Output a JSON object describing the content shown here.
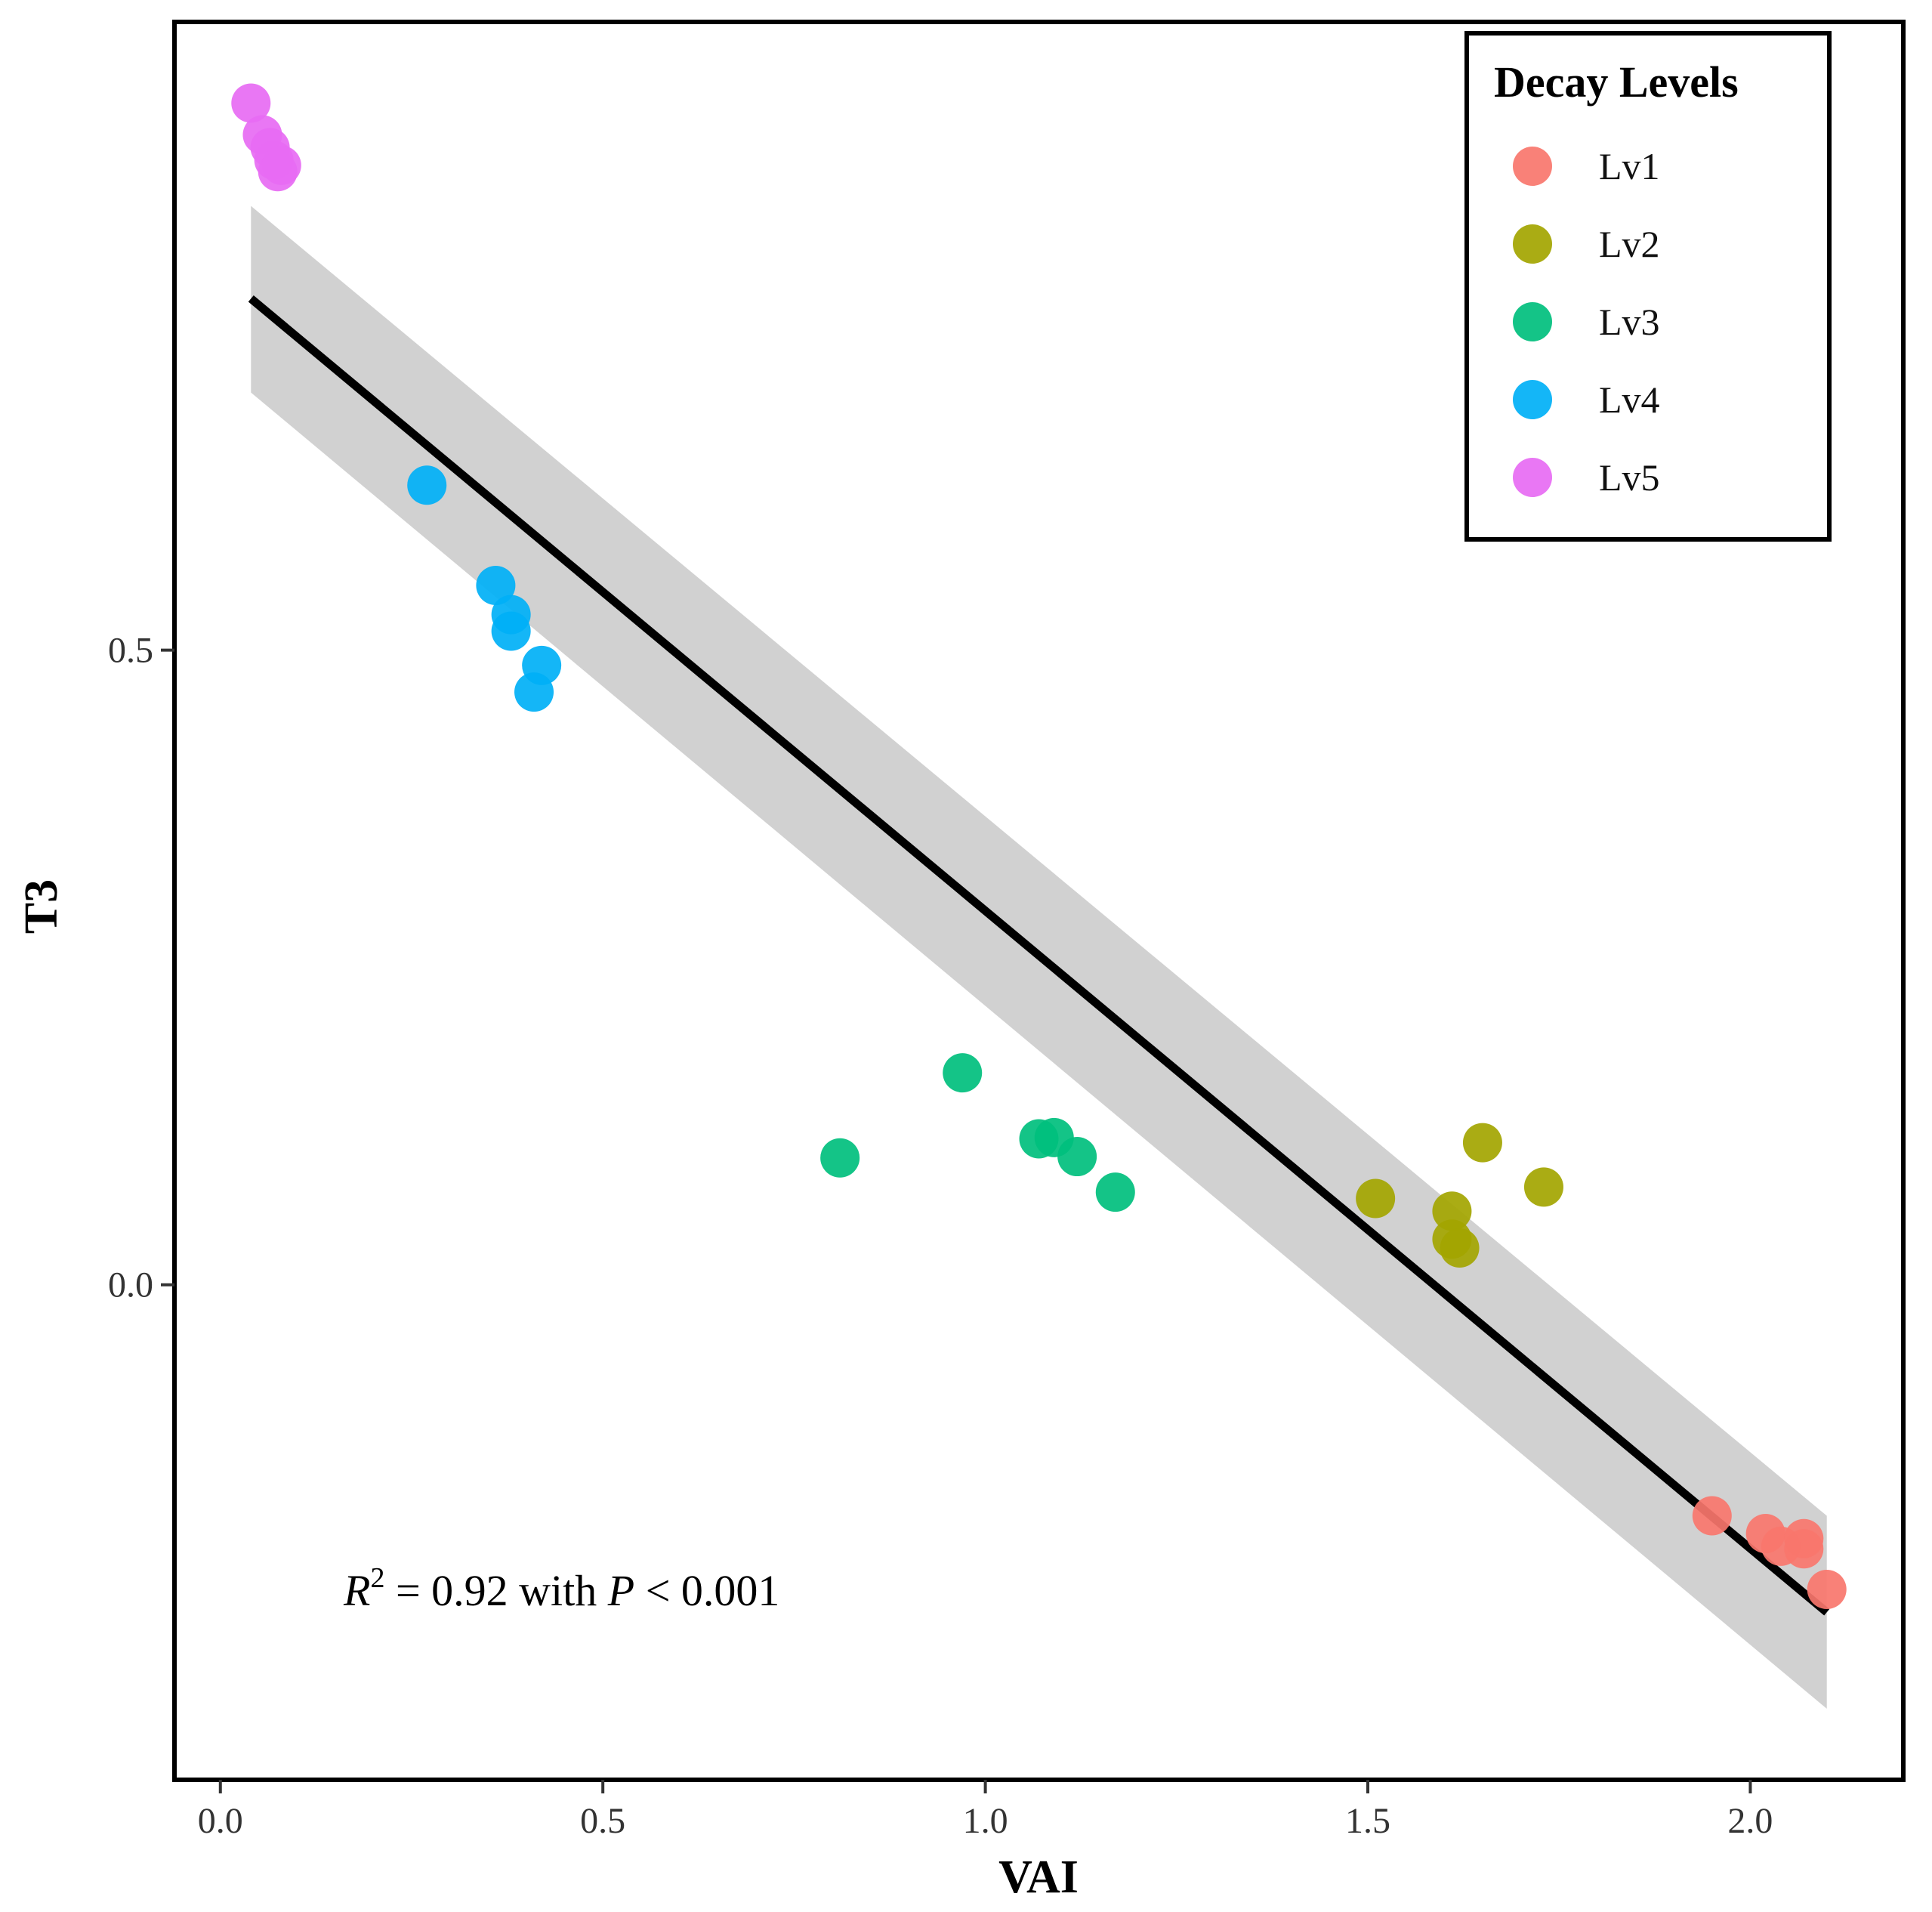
{
  "chart_data": {
    "type": "scatter",
    "title": "",
    "xlabel": "VAI",
    "ylabel": "T3",
    "xlim": [
      -0.06,
      2.2
    ],
    "ylim": [
      -0.39,
      0.995
    ],
    "x_ticks": [
      0.0,
      0.5,
      1.0,
      1.5,
      2.0
    ],
    "x_tick_labels": [
      "0.0",
      "0.5",
      "1.0",
      "1.5",
      "2.0"
    ],
    "y_ticks": [
      0.0,
      0.5
    ],
    "y_tick_labels": [
      "0.0",
      "0.5"
    ],
    "grid": false,
    "legend_position": "top-right",
    "legend": {
      "title": "Decay Levels",
      "entries": [
        {
          "label": "Lv1",
          "color": "#F8766D"
        },
        {
          "label": "Lv2",
          "color": "#A3A500"
        },
        {
          "label": "Lv3",
          "color": "#00BF7D"
        },
        {
          "label": "Lv4",
          "color": "#00B0F6"
        },
        {
          "label": "Lv5",
          "color": "#E76BF3"
        }
      ]
    },
    "series": [
      {
        "name": "Lv1",
        "color": "#F8766D",
        "points": [
          {
            "x": 1.95,
            "y": -0.182
          },
          {
            "x": 2.02,
            "y": -0.196
          },
          {
            "x": 2.04,
            "y": -0.206
          },
          {
            "x": 2.07,
            "y": -0.2
          },
          {
            "x": 2.07,
            "y": -0.208
          },
          {
            "x": 2.1,
            "y": -0.24
          }
        ]
      },
      {
        "name": "Lv2",
        "color": "#A3A500",
        "points": [
          {
            "x": 1.51,
            "y": 0.068
          },
          {
            "x": 1.61,
            "y": 0.058
          },
          {
            "x": 1.65,
            "y": 0.112
          },
          {
            "x": 1.73,
            "y": 0.077
          },
          {
            "x": 1.61,
            "y": 0.036
          },
          {
            "x": 1.62,
            "y": 0.029
          }
        ]
      },
      {
        "name": "Lv3",
        "color": "#00BF7D",
        "points": [
          {
            "x": 0.81,
            "y": 0.1
          },
          {
            "x": 0.97,
            "y": 0.167
          },
          {
            "x": 1.07,
            "y": 0.115
          },
          {
            "x": 1.09,
            "y": 0.116
          },
          {
            "x": 1.12,
            "y": 0.101
          },
          {
            "x": 1.17,
            "y": 0.073
          }
        ]
      },
      {
        "name": "Lv4",
        "color": "#00B0F6",
        "points": [
          {
            "x": 0.27,
            "y": 0.63
          },
          {
            "x": 0.36,
            "y": 0.551
          },
          {
            "x": 0.38,
            "y": 0.528
          },
          {
            "x": 0.38,
            "y": 0.515
          },
          {
            "x": 0.42,
            "y": 0.488
          },
          {
            "x": 0.41,
            "y": 0.467
          }
        ]
      },
      {
        "name": "Lv5",
        "color": "#E76BF3",
        "points": [
          {
            "x": 0.04,
            "y": 0.931
          },
          {
            "x": 0.055,
            "y": 0.906
          },
          {
            "x": 0.065,
            "y": 0.896
          },
          {
            "x": 0.07,
            "y": 0.886
          },
          {
            "x": 0.075,
            "y": 0.877
          },
          {
            "x": 0.08,
            "y": 0.882
          }
        ]
      }
    ],
    "regression": {
      "x_range": [
        0.04,
        2.1
      ],
      "line": [
        [
          0.04,
          0.777
        ],
        [
          2.1,
          -0.258
        ]
      ],
      "ci_upper": [
        [
          0.04,
          0.85
        ],
        [
          2.1,
          -0.182
        ]
      ],
      "ci_lower": [
        [
          0.04,
          0.703
        ],
        [
          2.1,
          -0.334
        ]
      ]
    },
    "annotation": {
      "r_symbol": "R",
      "superscript": "2",
      "equals_text": " = 0.92 with ",
      "p_symbol": "P",
      "p_text": " < 0.001"
    }
  }
}
